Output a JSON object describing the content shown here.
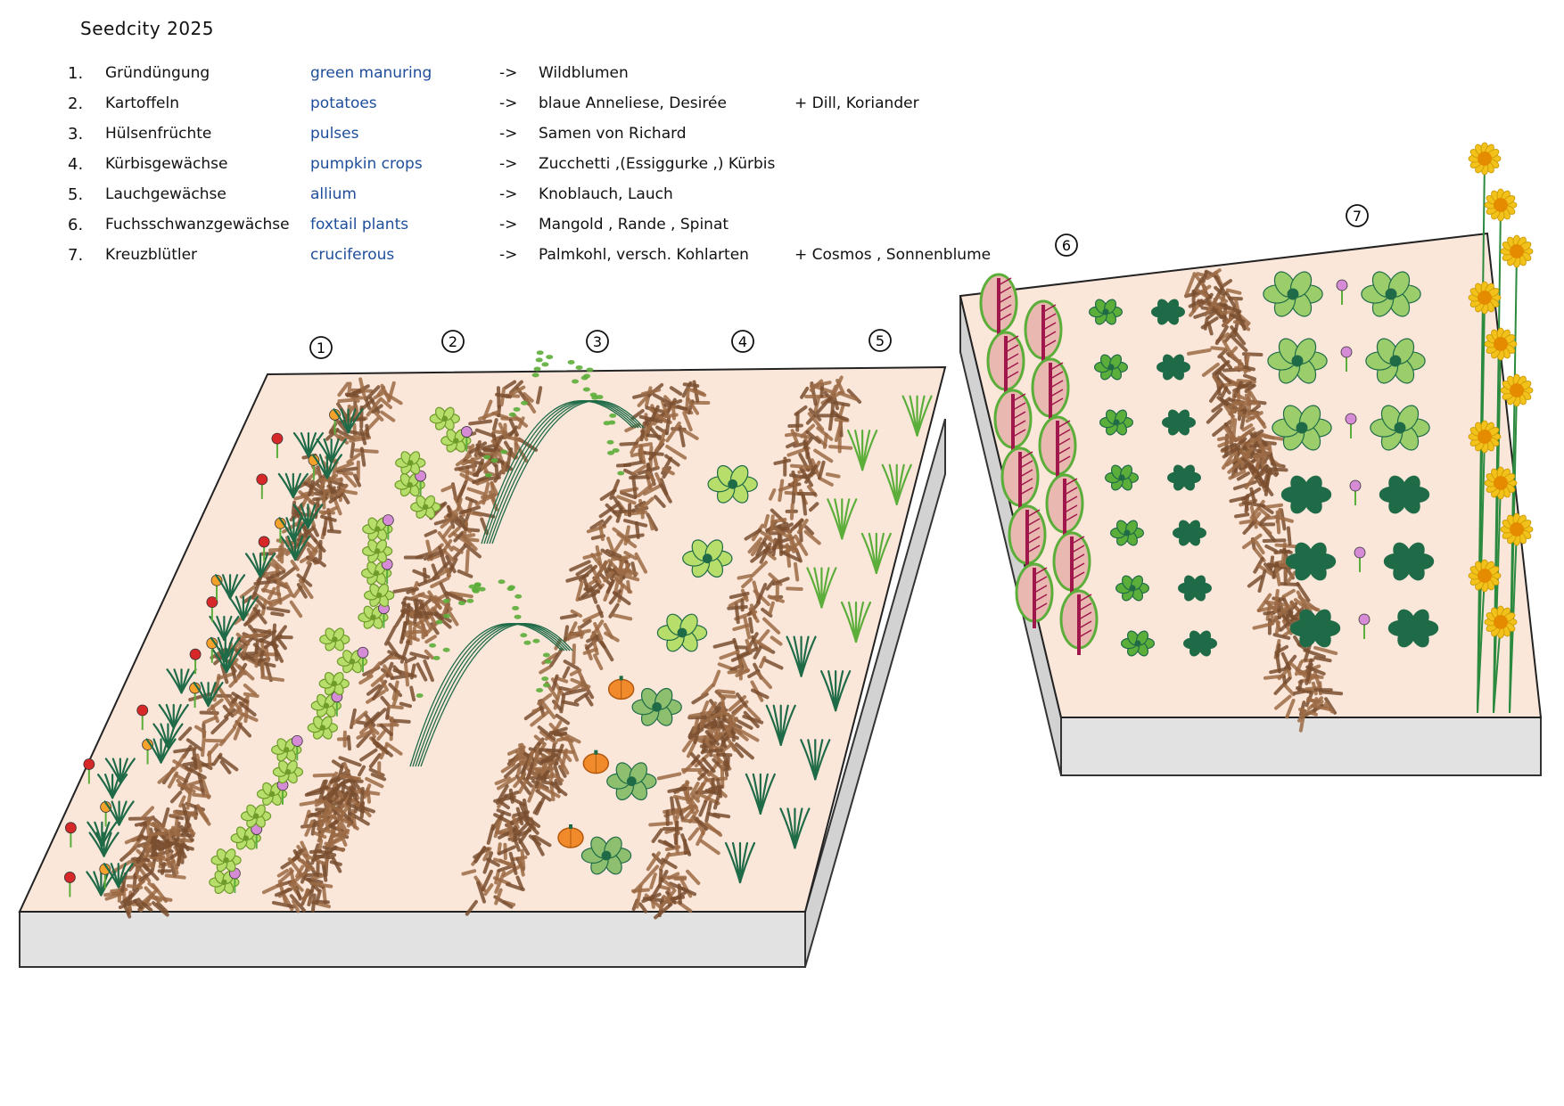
{
  "title": "Seedcity 2025",
  "legend": [
    {
      "num": "1.",
      "de": "Gründüngung",
      "en": "green manuring",
      "arrow": "->",
      "crops": "Wildblumen",
      "extra": ""
    },
    {
      "num": "2.",
      "de": "Kartoffeln",
      "en": "potatoes",
      "arrow": "->",
      "crops": "blaue Anneliese, Desirée",
      "extra": "+ Dill, Koriander"
    },
    {
      "num": "3.",
      "de": "Hülsenfrüchte",
      "en": "pulses",
      "arrow": "->",
      "crops": "Samen von Richard",
      "extra": ""
    },
    {
      "num": "4.",
      "de": "Kürbisgewächse",
      "en": "pumpkin crops",
      "arrow": "->",
      "crops": "Zucchetti ,(Essiggurke ,) Kürbis",
      "extra": ""
    },
    {
      "num": "5.",
      "de": "Lauchgewächse",
      "en": "allium",
      "arrow": "->",
      "crops": "Knoblauch, Lauch",
      "extra": ""
    },
    {
      "num": "6.",
      "de": "Fuchsschwanzgewächse",
      "en": "foxtail plants",
      "arrow": "->",
      "crops": "Mangold , Rande , Spinat",
      "extra": ""
    },
    {
      "num": "7.",
      "de": "Kreuzblütler",
      "en": "cruciferous",
      "arrow": "->",
      "crops": "Palmkohl, versch. Kohlarten",
      "extra": "+ Cosmos , Sonnenblume"
    }
  ],
  "bed_numbers": [
    "1",
    "2",
    "3",
    "4",
    "5",
    "6",
    "7"
  ],
  "colors": {
    "soil": "#fbe6da",
    "mulch": "#9c6b45",
    "mulch_dark": "#7a4f30",
    "leaf_light": "#b7dd6a",
    "leaf": "#5cae3a",
    "leaf_dark": "#1f6b48",
    "chard_red": "#a0174c",
    "pumpkin": "#f08a2a",
    "poppy": "#d62828",
    "marigold": "#f4a22c",
    "sunflower": "#f2c21b",
    "cosmos": "#d58bd6",
    "base": "#e2e2e2",
    "english_text": "#1f4e9a"
  }
}
